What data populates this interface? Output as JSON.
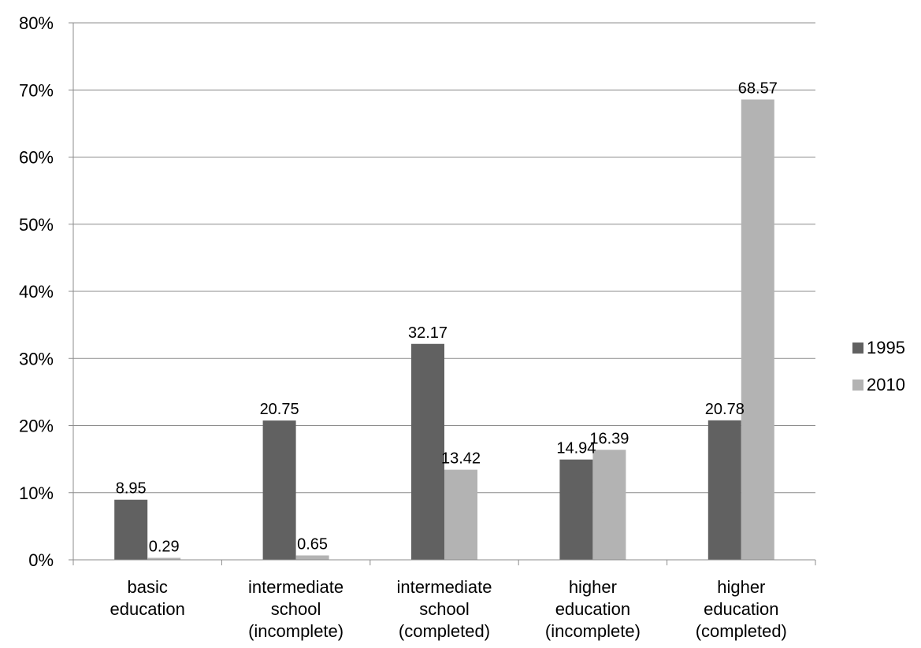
{
  "chart_data": {
    "type": "bar",
    "categories": [
      [
        "basic",
        "education"
      ],
      [
        "intermediate",
        "school",
        "(incomplete)"
      ],
      [
        "intermediate",
        "school",
        "(completed)"
      ],
      [
        "higher",
        "education",
        "(incomplete)"
      ],
      [
        "higher",
        "education",
        "(completed)"
      ]
    ],
    "series": [
      {
        "name": "1995",
        "values": [
          8.95,
          20.75,
          32.17,
          14.94,
          20.78
        ],
        "labels": [
          "8.95",
          "20.75",
          "32.17",
          "14.94",
          "20.78"
        ]
      },
      {
        "name": "2010",
        "values": [
          0.29,
          0.65,
          13.42,
          16.39,
          68.57
        ],
        "labels": [
          "0.29",
          "0.65",
          "13.42",
          "16.39",
          "68.57"
        ]
      }
    ],
    "colors": {
      "1995": "#616161",
      "2010": "#b3b3b3"
    },
    "ylim": [
      0,
      80
    ],
    "yticks": [
      "0%",
      "10%",
      "20%",
      "30%",
      "40%",
      "50%",
      "60%",
      "70%",
      "80%"
    ],
    "grid": true,
    "legend_position": "right"
  }
}
